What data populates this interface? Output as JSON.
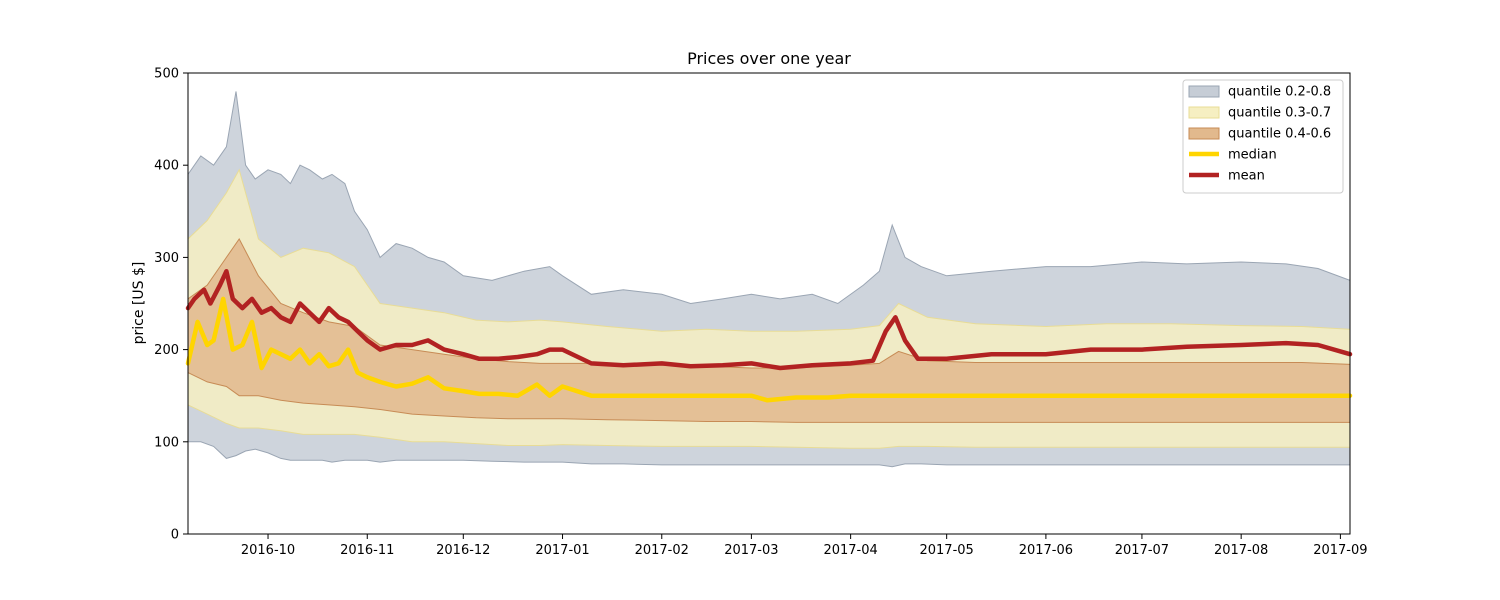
{
  "chart_data": {
    "type": "area",
    "title": "Prices over one year",
    "xlabel": "",
    "ylabel": "price [US $]",
    "xlim": [
      "2016-09-06",
      "2017-09-04"
    ],
    "ylim": [
      0,
      500
    ],
    "x_ticks": [
      "2016-10",
      "2016-11",
      "2016-12",
      "2017-01",
      "2017-02",
      "2017-03",
      "2017-04",
      "2017-05",
      "2017-06",
      "2017-07",
      "2017-08",
      "2017-09"
    ],
    "y_ticks": [
      0,
      100,
      200,
      300,
      400,
      500
    ],
    "legend_position": "top-right",
    "grid": false,
    "bands": [
      {
        "name": "quantile 0.2-0.8",
        "color": "#c6cdd6",
        "edge_color": "#9aa5b3",
        "x": [
          "2016-09-06",
          "2016-09-10",
          "2016-09-14",
          "2016-09-18",
          "2016-09-21",
          "2016-09-24",
          "2016-09-27",
          "2016-10-01",
          "2016-10-05",
          "2016-10-08",
          "2016-10-11",
          "2016-10-14",
          "2016-10-18",
          "2016-10-21",
          "2016-10-25",
          "2016-10-28",
          "2016-11-01",
          "2016-11-05",
          "2016-11-10",
          "2016-11-15",
          "2016-11-20",
          "2016-11-25",
          "2016-12-01",
          "2016-12-10",
          "2016-12-20",
          "2016-12-28",
          "2017-01-01",
          "2017-01-10",
          "2017-01-20",
          "2017-02-01",
          "2017-02-10",
          "2017-02-20",
          "2017-03-01",
          "2017-03-10",
          "2017-03-20",
          "2017-03-28",
          "2017-04-05",
          "2017-04-10",
          "2017-04-14",
          "2017-04-18",
          "2017-04-23",
          "2017-05-01",
          "2017-05-15",
          "2017-06-01",
          "2017-06-15",
          "2017-07-01",
          "2017-07-15",
          "2017-08-01",
          "2017-08-15",
          "2017-08-25",
          "2017-09-04"
        ],
        "upper": [
          390,
          410,
          400,
          420,
          480,
          400,
          385,
          395,
          390,
          380,
          400,
          395,
          385,
          390,
          380,
          350,
          330,
          300,
          315,
          310,
          300,
          295,
          280,
          275,
          285,
          290,
          280,
          260,
          265,
          260,
          250,
          255,
          260,
          255,
          260,
          250,
          270,
          285,
          335,
          300,
          290,
          280,
          285,
          290,
          290,
          295,
          293,
          295,
          293,
          288,
          275
        ],
        "lower": [
          100,
          100,
          95,
          82,
          85,
          90,
          92,
          88,
          82,
          80,
          80,
          80,
          80,
          78,
          80,
          80,
          80,
          78,
          80,
          80,
          80,
          80,
          80,
          79,
          78,
          78,
          78,
          76,
          76,
          75,
          75,
          75,
          75,
          75,
          75,
          75,
          75,
          75,
          73,
          76,
          76,
          75,
          75,
          75,
          75,
          75,
          75,
          75,
          75,
          75,
          75
        ]
      },
      {
        "name": "quantile 0.3-0.7",
        "color": "#f6efc2",
        "edge_color": "#e8dc96",
        "x": [
          "2016-09-06",
          "2016-09-12",
          "2016-09-18",
          "2016-09-22",
          "2016-09-28",
          "2016-10-05",
          "2016-10-12",
          "2016-10-20",
          "2016-10-28",
          "2016-11-05",
          "2016-11-15",
          "2016-11-25",
          "2016-12-05",
          "2016-12-15",
          "2016-12-25",
          "2017-01-01",
          "2017-01-15",
          "2017-02-01",
          "2017-02-15",
          "2017-03-01",
          "2017-03-15",
          "2017-04-01",
          "2017-04-10",
          "2017-04-16",
          "2017-04-25",
          "2017-05-10",
          "2017-06-01",
          "2017-06-20",
          "2017-07-10",
          "2017-08-01",
          "2017-08-20",
          "2017-09-04"
        ],
        "upper": [
          320,
          340,
          370,
          395,
          320,
          300,
          310,
          305,
          290,
          250,
          245,
          240,
          232,
          230,
          232,
          230,
          225,
          220,
          222,
          220,
          220,
          222,
          226,
          250,
          235,
          228,
          225,
          228,
          228,
          226,
          225,
          222
        ],
        "lower": [
          140,
          130,
          120,
          115,
          115,
          112,
          108,
          108,
          108,
          105,
          100,
          100,
          98,
          96,
          96,
          97,
          96,
          95,
          95,
          95,
          94,
          93,
          93,
          95,
          95,
          94,
          94,
          94,
          94,
          94,
          94,
          94
        ]
      },
      {
        "name": "quantile 0.4-0.6",
        "color": "#e2b98d",
        "edge_color": "#c78b55",
        "x": [
          "2016-09-06",
          "2016-09-12",
          "2016-09-18",
          "2016-09-22",
          "2016-09-28",
          "2016-10-05",
          "2016-10-12",
          "2016-10-20",
          "2016-10-28",
          "2016-11-05",
          "2016-11-15",
          "2016-11-25",
          "2016-12-05",
          "2016-12-15",
          "2016-12-25",
          "2017-01-01",
          "2017-01-15",
          "2017-02-01",
          "2017-02-15",
          "2017-03-01",
          "2017-03-15",
          "2017-04-01",
          "2017-04-10",
          "2017-04-16",
          "2017-04-25",
          "2017-05-10",
          "2017-06-01",
          "2017-06-20",
          "2017-07-10",
          "2017-08-01",
          "2017-08-20",
          "2017-09-04"
        ],
        "upper": [
          255,
          270,
          300,
          320,
          280,
          250,
          240,
          230,
          225,
          205,
          200,
          195,
          190,
          187,
          185,
          185,
          185,
          183,
          182,
          180,
          180,
          183,
          185,
          198,
          188,
          186,
          186,
          186,
          186,
          186,
          186,
          184
        ],
        "lower": [
          175,
          165,
          160,
          150,
          150,
          145,
          142,
          140,
          138,
          135,
          130,
          128,
          126,
          125,
          125,
          125,
          124,
          123,
          122,
          122,
          121,
          121,
          121,
          121,
          121,
          121,
          121,
          121,
          121,
          121,
          121,
          121
        ]
      }
    ],
    "series": [
      {
        "name": "median",
        "color": "#ffd500",
        "x": [
          "2016-09-06",
          "2016-09-09",
          "2016-09-12",
          "2016-09-14",
          "2016-09-17",
          "2016-09-20",
          "2016-09-23",
          "2016-09-26",
          "2016-09-29",
          "2016-10-02",
          "2016-10-05",
          "2016-10-08",
          "2016-10-11",
          "2016-10-14",
          "2016-10-17",
          "2016-10-20",
          "2016-10-23",
          "2016-10-26",
          "2016-10-29",
          "2016-11-01",
          "2016-11-05",
          "2016-11-10",
          "2016-11-15",
          "2016-11-20",
          "2016-11-25",
          "2016-12-01",
          "2016-12-06",
          "2016-12-12",
          "2016-12-18",
          "2016-12-24",
          "2016-12-28",
          "2017-01-01",
          "2017-01-10",
          "2017-01-20",
          "2017-02-01",
          "2017-02-15",
          "2017-03-01",
          "2017-03-06",
          "2017-03-15",
          "2017-03-25",
          "2017-04-01",
          "2017-04-10",
          "2017-04-19",
          "2017-04-21",
          "2017-05-01",
          "2017-05-20",
          "2017-06-10",
          "2017-07-01",
          "2017-07-20",
          "2017-08-10",
          "2017-08-25",
          "2017-09-04"
        ],
        "values": [
          185,
          230,
          205,
          210,
          255,
          200,
          205,
          230,
          180,
          200,
          195,
          190,
          200,
          185,
          195,
          182,
          185,
          200,
          175,
          170,
          165,
          160,
          163,
          170,
          158,
          155,
          152,
          152,
          150,
          162,
          150,
          160,
          150,
          150,
          150,
          150,
          150,
          145,
          148,
          148,
          150,
          150,
          150,
          150,
          150,
          150,
          150,
          150,
          150,
          150,
          150,
          150
        ]
      },
      {
        "name": "mean",
        "color": "#b22222",
        "x": [
          "2016-09-06",
          "2016-09-08",
          "2016-09-11",
          "2016-09-13",
          "2016-09-16",
          "2016-09-18",
          "2016-09-20",
          "2016-09-23",
          "2016-09-26",
          "2016-09-29",
          "2016-10-02",
          "2016-10-05",
          "2016-10-08",
          "2016-10-11",
          "2016-10-14",
          "2016-10-17",
          "2016-10-20",
          "2016-10-23",
          "2016-10-26",
          "2016-10-29",
          "2016-11-01",
          "2016-11-05",
          "2016-11-10",
          "2016-11-15",
          "2016-11-20",
          "2016-11-25",
          "2016-12-01",
          "2016-12-06",
          "2016-12-12",
          "2016-12-18",
          "2016-12-24",
          "2016-12-28",
          "2017-01-01",
          "2017-01-10",
          "2017-01-20",
          "2017-02-01",
          "2017-02-10",
          "2017-02-20",
          "2017-03-01",
          "2017-03-10",
          "2017-03-20",
          "2017-04-01",
          "2017-04-08",
          "2017-04-12",
          "2017-04-15",
          "2017-04-18",
          "2017-04-22",
          "2017-05-01",
          "2017-05-15",
          "2017-06-01",
          "2017-06-15",
          "2017-07-01",
          "2017-07-15",
          "2017-08-01",
          "2017-08-15",
          "2017-08-25",
          "2017-09-04"
        ],
        "values": [
          245,
          255,
          265,
          250,
          270,
          285,
          255,
          245,
          255,
          240,
          245,
          235,
          230,
          250,
          240,
          230,
          245,
          235,
          230,
          220,
          210,
          200,
          205,
          205,
          210,
          200,
          195,
          190,
          190,
          192,
          195,
          200,
          200,
          185,
          183,
          185,
          182,
          183,
          185,
          180,
          183,
          185,
          188,
          220,
          235,
          210,
          190,
          190,
          195,
          195,
          200,
          200,
          203,
          205,
          207,
          205,
          195
        ]
      }
    ]
  }
}
